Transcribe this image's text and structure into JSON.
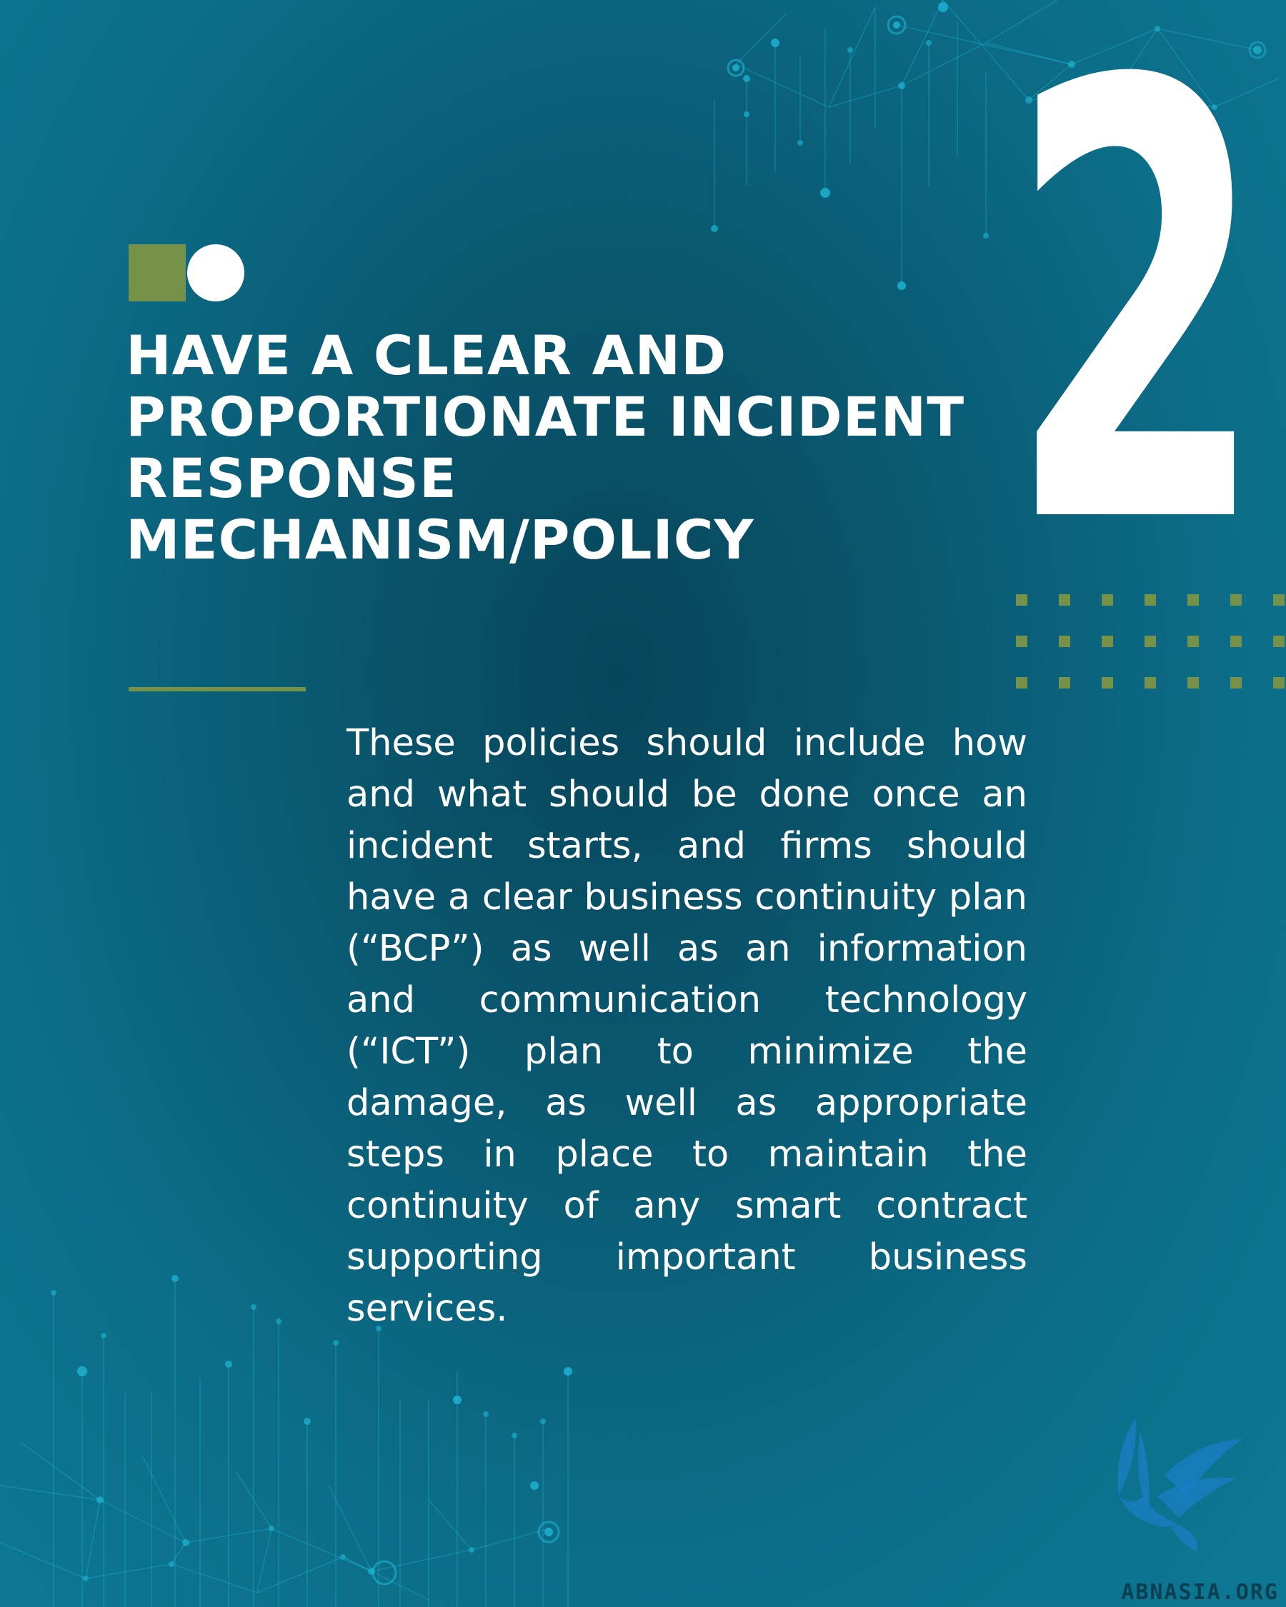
{
  "slide": {
    "number": "2",
    "heading_lines": [
      "HAVE A CLEAR AND",
      "PROPORTIONATE INCIDENT",
      "RESPONSE",
      "MECHANISM/POLICY"
    ],
    "body": "These policies should include how and what should be done once an incident starts, and firms should have a clear business continuity plan (“BCP”) as well as an information and communication technology (“ICT”) plan to minimize the damage, as well as appropriate steps in place to maintain the continuity of any smart contract supporting important business services.",
    "site_label": "ABNASIA.ORG"
  },
  "colors": {
    "background_center": "#07455a",
    "background_edge": "#0d7893",
    "accent_green": "#76924a",
    "text": "#ffffff",
    "network": "#1eb6d6",
    "logo_blue": "#1a7fc4"
  },
  "icons": {
    "marker_square": "green-square-icon",
    "marker_circle": "white-circle-icon",
    "logo": "bird-logo-icon"
  }
}
